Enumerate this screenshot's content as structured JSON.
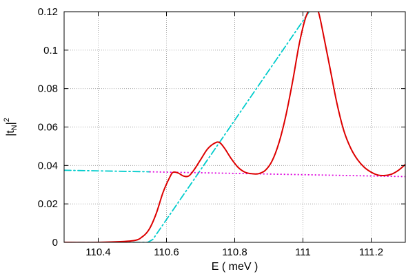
{
  "chart_data": {
    "type": "line",
    "title": "",
    "xlabel": "E  ( meV )",
    "ylabel_main": "|t",
    "ylabel_sub": "N",
    "ylabel_sup": "2",
    "xlim": [
      110.3,
      111.3
    ],
    "ylim": [
      0,
      0.12
    ],
    "xticks": [
      110.4,
      110.6,
      110.8,
      111,
      111.2
    ],
    "xtick_labels": [
      "110.4",
      "110.6",
      "110.8",
      "111",
      "111.2"
    ],
    "yticks": [
      0,
      0.02,
      0.04,
      0.06,
      0.08,
      0.1,
      0.12
    ],
    "ytick_labels": [
      "0",
      "0.02",
      "0.04",
      "0.06",
      "0.08",
      "0.1",
      "0.12"
    ],
    "grid": true,
    "series": [
      {
        "color": "#dd0000",
        "style": "solid",
        "x": [
          110.3,
          110.4,
          110.5,
          110.53,
          110.55,
          110.57,
          110.59,
          110.61,
          110.62,
          110.635,
          110.65,
          110.665,
          110.68,
          110.7,
          110.72,
          110.74,
          110.755,
          110.77,
          110.79,
          110.81,
          110.83,
          110.85,
          110.87,
          110.89,
          110.91,
          110.93,
          110.95,
          110.97,
          110.99,
          111.01,
          111.03,
          111.045,
          111.06,
          111.08,
          111.1,
          111.12,
          111.14,
          111.16,
          111.18,
          111.2,
          111.22,
          111.24,
          111.26,
          111.28,
          111.3
        ],
        "y": [
          0.0,
          0.0,
          0.0008,
          0.003,
          0.007,
          0.015,
          0.026,
          0.034,
          0.0365,
          0.036,
          0.0345,
          0.0345,
          0.0375,
          0.043,
          0.0485,
          0.0515,
          0.052,
          0.049,
          0.0435,
          0.039,
          0.0365,
          0.0357,
          0.0357,
          0.0375,
          0.0425,
          0.052,
          0.066,
          0.084,
          0.104,
          0.118,
          0.1225,
          0.12,
          0.108,
          0.09,
          0.072,
          0.058,
          0.049,
          0.043,
          0.039,
          0.0365,
          0.035,
          0.0348,
          0.0355,
          0.0375,
          0.0405
        ]
      },
      {
        "color": "#00cccc",
        "style": "dash-dot",
        "x": [
          110.3,
          110.55
        ],
        "y": [
          0.0375,
          0.0367
        ]
      },
      {
        "color": "#00cccc",
        "style": "dash-dot",
        "x": [
          110.3,
          110.545,
          110.56,
          111.03
        ],
        "y": [
          0.0,
          0.0,
          0.0015,
          0.123
        ]
      },
      {
        "color": "#dd00dd",
        "style": "dotted",
        "x": [
          110.55,
          111.3
        ],
        "y": [
          0.0367,
          0.0342
        ]
      }
    ]
  }
}
